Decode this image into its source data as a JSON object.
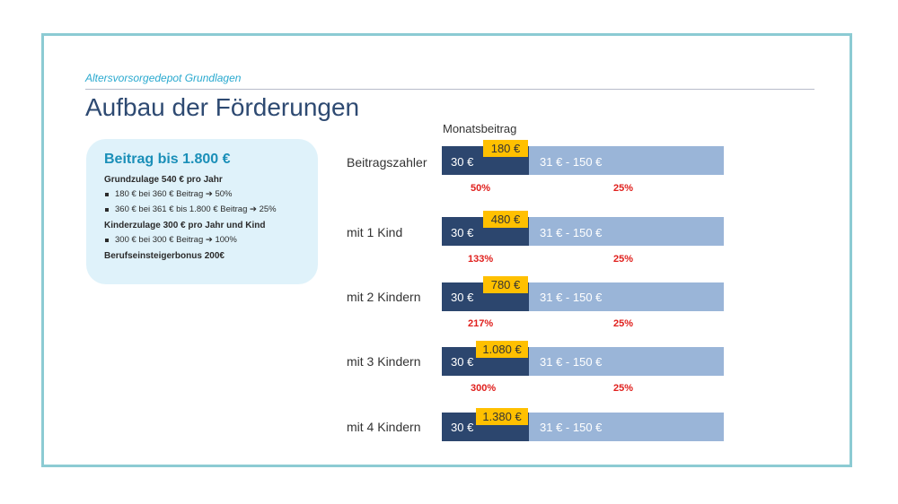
{
  "header": {
    "subtitle": "Altersvorsorgedepot Grundlagen",
    "title": "Aufbau der Förderungen"
  },
  "info": {
    "heading": "Beitrag bis 1.800 €",
    "grundzulage": "Grundzulage 540 € pro Jahr",
    "grund_items": [
      "180 € bei 360 € Beitrag ➔ 50%",
      "360 € bei 361 € bis 1.800 € Beitrag ➔ 25%"
    ],
    "kinderzulage": "Kinderzulage 300 € pro Jahr und Kind",
    "kinder_items": [
      "300 € bei 300 € Beitrag ➔ 100%"
    ],
    "bonus": "Berufseinsteigerbonus 200€"
  },
  "column_header": "Monatsbeitrag",
  "rows": [
    {
      "label": "Beitragszahler",
      "base": "30 €",
      "upper": "31 € - 150 €",
      "badge": "180 €",
      "pct_low": "50%",
      "pct_high": "25%"
    },
    {
      "label": "mit 1 Kind",
      "base": "30 €",
      "upper": "31 € - 150 €",
      "badge": "480 €",
      "pct_low": "133%",
      "pct_high": "25%"
    },
    {
      "label": "mit 2 Kindern",
      "base": "30 €",
      "upper": "31 € - 150 €",
      "badge": "780 €",
      "pct_low": "217%",
      "pct_high": "25%"
    },
    {
      "label": "mit 3 Kindern",
      "base": "30 €",
      "upper": "31 € - 150 €",
      "badge": "1.080 €",
      "pct_low": "300%",
      "pct_high": "25%"
    },
    {
      "label": "mit 4 Kindern",
      "base": "30 €",
      "upper": "31 € - 150 €",
      "badge": "1.380 €"
    }
  ],
  "colors": {
    "frame": "#8ccbd3",
    "title": "#2e4a72",
    "subtitle": "#29a9cf",
    "bar_dark": "#2c466e",
    "bar_light": "#9ab5d8",
    "badge": "#ffc000",
    "percent": "#e0201d",
    "infobox": "#dff2fa"
  }
}
